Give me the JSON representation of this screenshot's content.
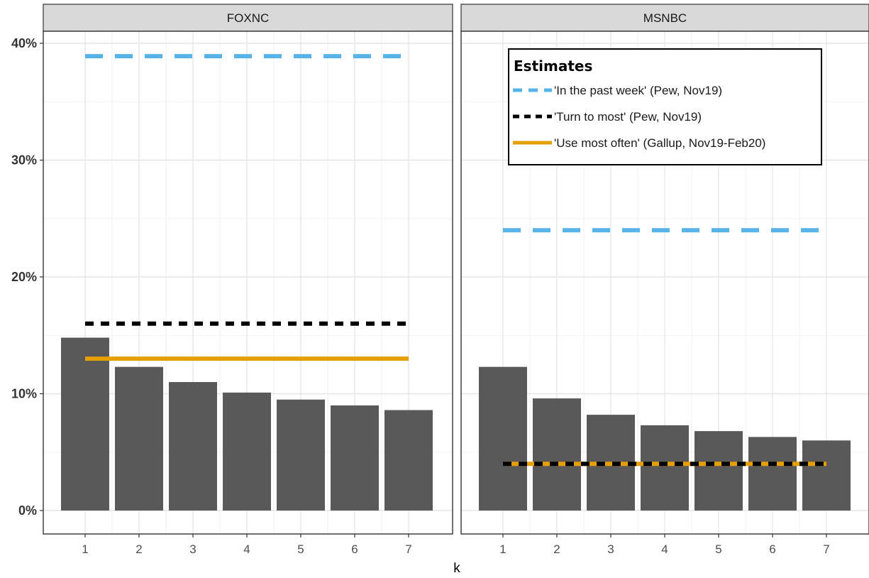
{
  "chart_data": {
    "type": "bar",
    "xlabel": "k",
    "ylabel": "",
    "x": [
      1,
      2,
      3,
      4,
      5,
      6,
      7
    ],
    "ylim": [
      0,
      0.4
    ],
    "yticks": [
      0,
      0.1,
      0.2,
      0.3,
      0.4
    ],
    "ytick_labels": [
      "0%",
      "10%",
      "20%",
      "30%",
      "40%"
    ],
    "xticks": [
      1,
      2,
      3,
      4,
      5,
      6,
      7
    ],
    "grid": true,
    "legend": {
      "title": "Estimates",
      "placement": "top-right",
      "entries": [
        {
          "label": "'In the past week' (Pew, Nov19)",
          "color": "#56B4E9",
          "style": "dashed"
        },
        {
          "label": "'Turn to most' (Pew, Nov19)",
          "color": "#000000",
          "style": "dotted"
        },
        {
          "label": "'Use most often' (Gallup, Nov19-Feb20)",
          "color": "#E69F00",
          "style": "solid"
        }
      ]
    },
    "bar_color": "#595959",
    "panels": [
      {
        "name": "FOXNC",
        "values": [
          0.148,
          0.123,
          0.11,
          0.101,
          0.095,
          0.09,
          0.086
        ],
        "estimates": {
          "past_week": 0.389,
          "turn_to_most": 0.16,
          "use_most_often": 0.13
        }
      },
      {
        "name": "MSNBC",
        "values": [
          0.123,
          0.096,
          0.082,
          0.073,
          0.068,
          0.063,
          0.06
        ],
        "estimates": {
          "past_week": 0.24,
          "turn_to_most": 0.04,
          "use_most_often": 0.04
        }
      }
    ]
  }
}
